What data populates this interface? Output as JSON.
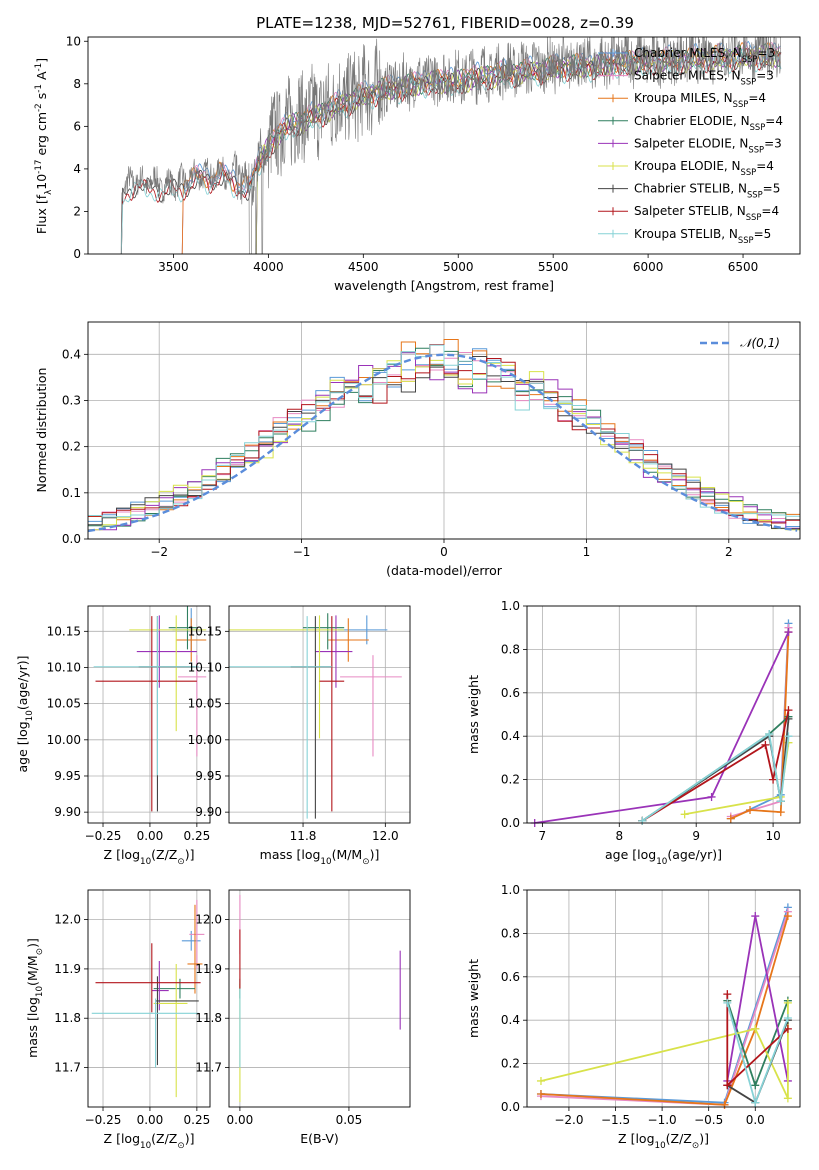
{
  "title": "PLATE=1238, MJD=52761, FIBERID=0028, z=0.39",
  "colors": {
    "chabrier_miles": "#5a9ad8",
    "salpeter_miles": "#e78ac3",
    "kroupa_miles": "#e6761a",
    "chabrier_elodie": "#2f7f5f",
    "salpeter_elodie": "#9a33b8",
    "kroupa_elodie": "#d8e24a",
    "chabrier_stelib": "#444444",
    "salpeter_stelib": "#b2151b",
    "kroupa_stelib": "#86d2d6",
    "normal_curve": "#5b8ddb",
    "grid": "#b0b0b0"
  },
  "chart_data": [
    {
      "id": "spectrum",
      "type": "line",
      "xlabel": "wavelength [Angstrom, rest frame]",
      "ylabel": "Flux [f$_\\lambda$10$^{-17}$ erg cm$^{-2}$ s$^{-1}$ A$^{-1}$]",
      "xlim": [
        3050,
        6800
      ],
      "ylim": [
        0,
        10.2
      ],
      "xticks": [
        "3500",
        "4000",
        "4500",
        "5000",
        "5500",
        "6000",
        "6500"
      ],
      "yticks": [
        "0",
        "2",
        "4",
        "6",
        "8",
        "10"
      ],
      "grid": false,
      "legend_position": "right",
      "legend": [
        {
          "label": "Chabrier MILES, N$_{SSP}$=3",
          "color_key": "chabrier_miles"
        },
        {
          "label": "Salpeter MILES, N$_{SSP}$=3",
          "color_key": "salpeter_miles"
        },
        {
          "label": "Kroupa MILES, N$_{SSP}$=4",
          "color_key": "kroupa_miles"
        },
        {
          "label": "Chabrier ELODIE, N$_{SSP}$=4",
          "color_key": "chabrier_elodie"
        },
        {
          "label": "Salpeter ELODIE, N$_{SSP}$=3",
          "color_key": "salpeter_elodie"
        },
        {
          "label": "Kroupa ELODIE, N$_{SSP}$=4",
          "color_key": "kroupa_elodie"
        },
        {
          "label": "Chabrier STELIB, N$_{SSP}$=5",
          "color_key": "chabrier_stelib"
        },
        {
          "label": "Salpeter STELIB, N$_{SSP}$=4",
          "color_key": "salpeter_stelib"
        },
        {
          "label": "Kroupa STELIB, N$_{SSP}$=5",
          "color_key": "kroupa_stelib"
        }
      ],
      "continuum": {
        "x": [
          3220,
          3260,
          3300,
          3350,
          3400,
          3450,
          3500,
          3550,
          3600,
          3650,
          3700,
          3750,
          3800,
          3850,
          3900,
          3950,
          4000,
          4050,
          4100,
          4200,
          4300,
          4400,
          4500,
          4600,
          4700,
          4800,
          4900,
          5000,
          5100,
          5200,
          5300,
          5400,
          5500,
          5600,
          5700,
          5800,
          5900,
          6000,
          6100,
          6200,
          6300,
          6400,
          6500,
          6600,
          6700
        ],
        "y": [
          2.8,
          3.3,
          3.5,
          3.3,
          3.4,
          3.2,
          3.3,
          3.4,
          3.6,
          3.8,
          3.7,
          3.9,
          3.6,
          3.5,
          3.2,
          4.5,
          5.2,
          5.8,
          6.2,
          6.5,
          6.9,
          7.3,
          7.6,
          7.9,
          8.0,
          8.2,
          8.3,
          8.3,
          8.5,
          8.6,
          8.7,
          8.8,
          8.9,
          9.0,
          9.0,
          9.1,
          9.2,
          9.2,
          9.3,
          9.3,
          9.4,
          9.4,
          9.5,
          9.5,
          9.5
        ]
      },
      "model_start_wavelength": 3220,
      "model_cutoffs_x": [
        3220,
        3540,
        3930,
        4005
      ],
      "data_start_wavelength": 3220,
      "data_end_wavelength": 6700
    },
    {
      "id": "residuals",
      "type": "step",
      "xlabel": "(data-model)/error",
      "ylabel": "Normed distribution",
      "xlim": [
        -2.5,
        2.5
      ],
      "ylim": [
        0,
        0.47
      ],
      "xticks": [
        "−2",
        "−1",
        "0",
        "1",
        "2"
      ],
      "yticks": [
        "0.0",
        "0.1",
        "0.2",
        "0.3",
        "0.4"
      ],
      "grid": true,
      "legend_position": "top-right",
      "legend": [
        {
          "label": "$\\mathcal{N}(0,1)$",
          "color_key": "normal_curve",
          "style": "dashed"
        }
      ],
      "bin_width": 0.1
    },
    {
      "id": "age_vs_Z",
      "type": "errorbar",
      "xlabel": "Z [log$_{10}$(Z/Z$_\\odot$)]",
      "ylabel": "age  [log$_{10}$(age/yr)]",
      "xlim": [
        -0.33,
        0.32
      ],
      "ylim": [
        9.885,
        10.185
      ],
      "xticks": [
        "−0.25",
        "0.00",
        "0.25"
      ],
      "yticks": [
        "9.90",
        "9.95",
        "10.00",
        "10.05",
        "10.10",
        "10.15"
      ],
      "grid": true,
      "points": [
        {
          "color_key": "chabrier_miles",
          "x": 0.22,
          "xerr": [
            0.1,
            0.06
          ],
          "y": 10.152,
          "yerr": [
            0.03,
            0.03
          ]
        },
        {
          "color_key": "salpeter_miles",
          "x": 0.25,
          "xerr": [
            0.1,
            0.05
          ],
          "y": 10.087,
          "yerr": [
            0.11,
            0.03
          ]
        },
        {
          "color_key": "kroupa_miles",
          "x": 0.22,
          "xerr": [
            0.08,
            0.08
          ],
          "y": 10.138,
          "yerr": [
            0.03,
            0.03
          ]
        },
        {
          "color_key": "chabrier_elodie",
          "x": 0.2,
          "xerr": [
            0.1,
            0.05
          ],
          "y": 10.155,
          "yerr": [
            0.03,
            0.03
          ]
        },
        {
          "color_key": "salpeter_elodie",
          "x": 0.05,
          "xerr": [
            0.12,
            0.2
          ],
          "y": 10.122,
          "yerr": [
            0.05,
            0.05
          ]
        },
        {
          "color_key": "kroupa_elodie",
          "x": 0.14,
          "xerr": [
            0.25,
            0.16
          ],
          "y": 10.152,
          "yerr": [
            0.14,
            0.02
          ]
        },
        {
          "color_key": "chabrier_stelib",
          "x": 0.04,
          "xerr": [
            0.1,
            0.2
          ],
          "y": 10.101,
          "yerr": [
            0.2,
            0.07
          ]
        },
        {
          "color_key": "salpeter_stelib",
          "x": 0.01,
          "xerr": [
            0.3,
            0.24
          ],
          "y": 10.081,
          "yerr": [
            0.18,
            0.09
          ]
        },
        {
          "color_key": "kroupa_stelib",
          "x": 0.04,
          "xerr": [
            0.34,
            0.22
          ],
          "y": 10.101,
          "yerr": [
            0.15,
            0.07
          ]
        }
      ]
    },
    {
      "id": "age_vs_mass",
      "type": "errorbar",
      "xlabel": "mass [log$_{10}$(M/M$_\\odot$)]",
      "ylabel": "",
      "xlim": [
        11.62,
        12.06
      ],
      "ylim": [
        9.885,
        10.185
      ],
      "xticks": [
        "11.8",
        "12.0"
      ],
      "yticks": [
        "9.90",
        "9.95",
        "10.00",
        "10.05",
        "10.10",
        "10.15"
      ],
      "grid": true,
      "points": [
        {
          "color_key": "chabrier_miles",
          "x": 11.955,
          "xerr": [
            0.07,
            0.05
          ],
          "y": 10.152,
          "yerr": [
            0.02,
            0.02
          ]
        },
        {
          "color_key": "salpeter_miles",
          "x": 11.97,
          "xerr": [
            0.08,
            0.07
          ],
          "y": 10.087,
          "yerr": [
            0.11,
            0.03
          ]
        },
        {
          "color_key": "kroupa_miles",
          "x": 11.91,
          "xerr": [
            0.05,
            0.05
          ],
          "y": 10.138,
          "yerr": [
            0.03,
            0.03
          ]
        },
        {
          "color_key": "chabrier_elodie",
          "x": 11.86,
          "xerr": [
            0.06,
            0.04
          ],
          "y": 10.155,
          "yerr": [
            0.03,
            0.02
          ]
        },
        {
          "color_key": "salpeter_elodie",
          "x": 11.88,
          "xerr": [
            0.05,
            0.04
          ],
          "y": 10.122,
          "yerr": [
            0.05,
            0.05
          ]
        },
        {
          "color_key": "kroupa_elodie",
          "x": 11.84,
          "xerr": [
            0.23,
            0.06
          ],
          "y": 10.152,
          "yerr": [
            0.15,
            0.02
          ]
        },
        {
          "color_key": "chabrier_stelib",
          "x": 11.83,
          "xerr": [
            0.06,
            0.04
          ],
          "y": 10.101,
          "yerr": [
            0.21,
            0.07
          ]
        },
        {
          "color_key": "salpeter_stelib",
          "x": 11.87,
          "xerr": [
            0.03,
            0.03
          ],
          "y": 10.081,
          "yerr": [
            0.18,
            0.09
          ]
        },
        {
          "color_key": "kroupa_stelib",
          "x": 11.81,
          "xerr": [
            0.19,
            0.06
          ],
          "y": 10.101,
          "yerr": [
            0.21,
            0.07
          ]
        }
      ]
    },
    {
      "id": "mass_vs_Z",
      "type": "errorbar",
      "xlabel": "Z [log$_{10}$(Z/Z$_\\odot$)]",
      "ylabel": "mass [log$_{10}$(M/M$_\\odot$)]",
      "xlim": [
        -0.33,
        0.32
      ],
      "ylim": [
        11.62,
        12.06
      ],
      "xticks": [
        "−0.25",
        "0.00",
        "0.25"
      ],
      "yticks": [
        "11.7",
        "11.8",
        "11.9",
        "12.0"
      ],
      "grid": true,
      "points": [
        {
          "color_key": "chabrier_miles",
          "x": 0.22,
          "xerr": [
            0.05,
            0.05
          ],
          "y": 11.957,
          "yerr": [
            0.02,
            0.02
          ]
        },
        {
          "color_key": "salpeter_miles",
          "x": 0.25,
          "xerr": [
            0.04,
            0.04
          ],
          "y": 11.97,
          "yerr": [
            0.07,
            0.07
          ]
        },
        {
          "color_key": "kroupa_miles",
          "x": 0.24,
          "xerr": [
            0.04,
            0.04
          ],
          "y": 11.91,
          "yerr": [
            0.06,
            0.12
          ]
        },
        {
          "color_key": "chabrier_elodie",
          "x": 0.16,
          "xerr": [
            0.14,
            0.08
          ],
          "y": 11.86,
          "yerr": [
            0.02,
            0.02
          ]
        },
        {
          "color_key": "salpeter_elodie",
          "x": 0.05,
          "xerr": [
            0.04,
            0.05
          ],
          "y": 11.856,
          "yerr": [
            0.04,
            0.06
          ]
        },
        {
          "color_key": "kroupa_elodie",
          "x": 0.14,
          "xerr": [
            0.12,
            0.06
          ],
          "y": 11.83,
          "yerr": [
            0.19,
            0.08
          ]
        },
        {
          "color_key": "chabrier_stelib",
          "x": 0.04,
          "xerr": [
            0.01,
            0.22
          ],
          "y": 11.835,
          "yerr": [
            0.13,
            0.05
          ]
        },
        {
          "color_key": "salpeter_stelib",
          "x": 0.01,
          "xerr": [
            0.3,
            0.26
          ],
          "y": 11.872,
          "yerr": [
            0.06,
            0.08
          ]
        },
        {
          "color_key": "kroupa_stelib",
          "x": 0.03,
          "xerr": [
            0.34,
            0.23
          ],
          "y": 11.81,
          "yerr": [
            0.11,
            0.03
          ]
        }
      ]
    },
    {
      "id": "mass_vs_ebv",
      "type": "errorbar",
      "xlabel": "E(B-V)",
      "ylabel": "",
      "xlim": [
        -0.005,
        0.078
      ],
      "ylim": [
        11.62,
        12.06
      ],
      "xticks": [
        "0.00",
        "0.05"
      ],
      "yticks": [
        "11.7",
        "11.8",
        "11.9",
        "12.0"
      ],
      "grid": true,
      "points": [
        {
          "color_key": "salpeter_miles",
          "x": 0.0,
          "xerr": [
            0,
            0
          ],
          "y": 11.99,
          "yerr": [
            0.06,
            0.06
          ]
        },
        {
          "color_key": "kroupa_elodie",
          "x": 0.0,
          "xerr": [
            0,
            0
          ],
          "y": 11.75,
          "yerr": [
            0.12,
            0.12
          ]
        },
        {
          "color_key": "chabrier_elodie",
          "x": 0.0,
          "xerr": [
            0,
            0
          ],
          "y": 11.86,
          "yerr": [
            0.02,
            0.02
          ]
        },
        {
          "color_key": "salpeter_stelib",
          "x": 0.0,
          "xerr": [
            0,
            0
          ],
          "y": 11.92,
          "yerr": [
            0.06,
            0.06
          ]
        },
        {
          "color_key": "kroupa_stelib",
          "x": 0.0,
          "xerr": [
            0,
            0
          ],
          "y": 11.78,
          "yerr": [
            0.08,
            0.08
          ]
        },
        {
          "color_key": "salpeter_elodie",
          "x": 0.0735,
          "xerr": [
            0,
            0
          ],
          "y": 11.857,
          "yerr": [
            0.08,
            0.08
          ]
        }
      ]
    },
    {
      "id": "weight_vs_age",
      "type": "line",
      "xlabel": "age  [log$_{10}$(age/yr)]",
      "ylabel": "mass weight",
      "xlim": [
        6.8,
        10.35
      ],
      "ylim": [
        0,
        1.0
      ],
      "xticks": [
        "7",
        "8",
        "9",
        "10"
      ],
      "yticks": [
        "0.0",
        "0.2",
        "0.4",
        "0.6",
        "0.8",
        "1.0"
      ],
      "grid": true,
      "series": [
        {
          "color_key": "chabrier_miles",
          "x": [
            9.45,
            10.1,
            10.2
          ],
          "y": [
            0.02,
            0.13,
            0.92
          ]
        },
        {
          "color_key": "salpeter_miles",
          "x": [
            9.45,
            10.1,
            10.2
          ],
          "y": [
            0.03,
            0.1,
            0.9
          ]
        },
        {
          "color_key": "kroupa_miles",
          "x": [
            9.45,
            9.7,
            10.1,
            10.2
          ],
          "y": [
            0.02,
            0.06,
            0.05,
            0.88
          ]
        },
        {
          "color_key": "chabrier_elodie",
          "x": [
            8.3,
            9.95,
            10.2
          ],
          "y": [
            0.01,
            0.41,
            0.49
          ]
        },
        {
          "color_key": "salpeter_elodie",
          "x": [
            6.9,
            9.2,
            10.2
          ],
          "y": [
            0.0,
            0.12,
            0.88
          ]
        },
        {
          "color_key": "kroupa_elodie",
          "x": [
            8.85,
            10.1,
            10.2
          ],
          "y": [
            0.04,
            0.12,
            0.37
          ]
        },
        {
          "color_key": "chabrier_stelib",
          "x": [
            8.3,
            9.95,
            10.1,
            10.2
          ],
          "y": [
            0.01,
            0.4,
            0.1,
            0.48
          ]
        },
        {
          "color_key": "salpeter_stelib",
          "x": [
            8.3,
            9.9,
            10.0,
            10.2
          ],
          "y": [
            0.01,
            0.36,
            0.2,
            0.52
          ]
        },
        {
          "color_key": "kroupa_stelib",
          "x": [
            8.3,
            9.95,
            10.1,
            10.2
          ],
          "y": [
            0.01,
            0.41,
            0.1,
            0.4
          ]
        }
      ]
    },
    {
      "id": "weight_vs_Z",
      "type": "line",
      "xlabel": "Z [log$_{10}$(Z/Z$_\\odot$)]",
      "ylabel": "mass weight",
      "xlim": [
        -2.45,
        0.48
      ],
      "ylim": [
        0,
        1.0
      ],
      "xticks": [
        "−2.0",
        "−1.5",
        "−1.0",
        "−0.5",
        "0.0"
      ],
      "yticks": [
        "0.0",
        "0.2",
        "0.4",
        "0.6",
        "0.8",
        "1.0"
      ],
      "grid": true,
      "series": [
        {
          "color_key": "chabrier_miles",
          "x": [
            -2.3,
            -0.33,
            0.35
          ],
          "y": [
            0.06,
            0.02,
            0.92
          ]
        },
        {
          "color_key": "salpeter_miles",
          "x": [
            -2.3,
            -0.33,
            0.35
          ],
          "y": [
            0.05,
            0.01,
            0.9
          ]
        },
        {
          "color_key": "kroupa_miles",
          "x": [
            -2.3,
            -0.33,
            0.0,
            0.35
          ],
          "y": [
            0.06,
            0.01,
            0.36,
            0.88
          ]
        },
        {
          "color_key": "chabrier_elodie",
          "x": [
            -0.3,
            0.0,
            0.35
          ],
          "y": [
            0.49,
            0.1,
            0.49
          ]
        },
        {
          "color_key": "salpeter_elodie",
          "x": [
            -0.3,
            0.0,
            0.35
          ],
          "y": [
            0.12,
            0.88,
            0.12
          ]
        },
        {
          "color_key": "kroupa_elodie",
          "x": [
            -2.3,
            0.0,
            0.35,
            0.35
          ],
          "y": [
            0.12,
            0.36,
            0.04,
            0.48
          ]
        },
        {
          "color_key": "chabrier_stelib",
          "x": [
            -0.3,
            0.0,
            0.35
          ],
          "y": [
            0.1,
            0.02,
            0.4
          ]
        },
        {
          "color_key": "salpeter_stelib",
          "x": [
            -0.3,
            -0.3,
            0.35
          ],
          "y": [
            0.52,
            0.1,
            0.36
          ]
        },
        {
          "color_key": "kroupa_stelib",
          "x": [
            -0.3,
            0.0,
            0.35
          ],
          "y": [
            0.48,
            0.02,
            0.41
          ]
        }
      ]
    }
  ]
}
